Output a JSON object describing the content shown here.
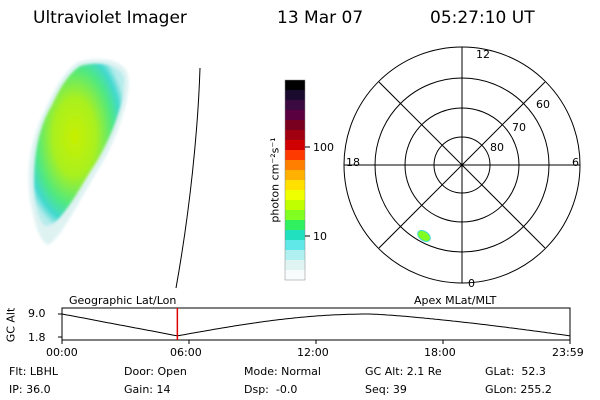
{
  "header": {
    "instrument": "Ultraviolet Imager",
    "date": "13 Mar 07",
    "time": "05:27:10 UT"
  },
  "colorbar": {
    "unit_label": "photon cm⁻²s⁻¹",
    "ticks": [
      "100",
      "10"
    ],
    "colors": [
      "#000000",
      "#1a0a2e",
      "#3a0a40",
      "#5a0040",
      "#7a0020",
      "#a00010",
      "#d00000",
      "#ff3a00",
      "#ff8000",
      "#ffb000",
      "#ffe000",
      "#f0ff00",
      "#c0ff00",
      "#80ff20",
      "#30f060",
      "#20e0c0",
      "#60e8e8",
      "#b0f0f0",
      "#e0f4f4",
      "#f8fcfc"
    ]
  },
  "polar_plot": {
    "mlt_labels": {
      "top": "12",
      "left": "18",
      "right": "6",
      "bottom": "0"
    },
    "lat_labels": [
      "60",
      "70",
      "80"
    ]
  },
  "timeline": {
    "ylabel": "GC Alt",
    "y_ticks": [
      "9.0",
      "1.8"
    ],
    "left_label": "Geographic Lat/Lon",
    "right_label": "Apex MLat/MLT",
    "x_ticks": [
      "00:00",
      "06:00",
      "12:00",
      "18:00",
      "23:59"
    ],
    "x_range_hours": [
      0,
      24
    ],
    "y_range": [
      1.8,
      9.0
    ],
    "current_time_hours": 5.45,
    "marker_color": "#e00000"
  },
  "footer": {
    "col1": [
      "Flt: LBHL",
      "IP: 36.0"
    ],
    "col2": [
      "Door: Open",
      "Gain: 14"
    ],
    "col3": [
      "Mode: Normal",
      "Dsp:  -0.0"
    ],
    "col4": [
      "GC Alt: 2.1 Re",
      "Seq: 39"
    ],
    "col5": [
      "GLat:  52.3",
      "GLon: 255.2"
    ]
  }
}
